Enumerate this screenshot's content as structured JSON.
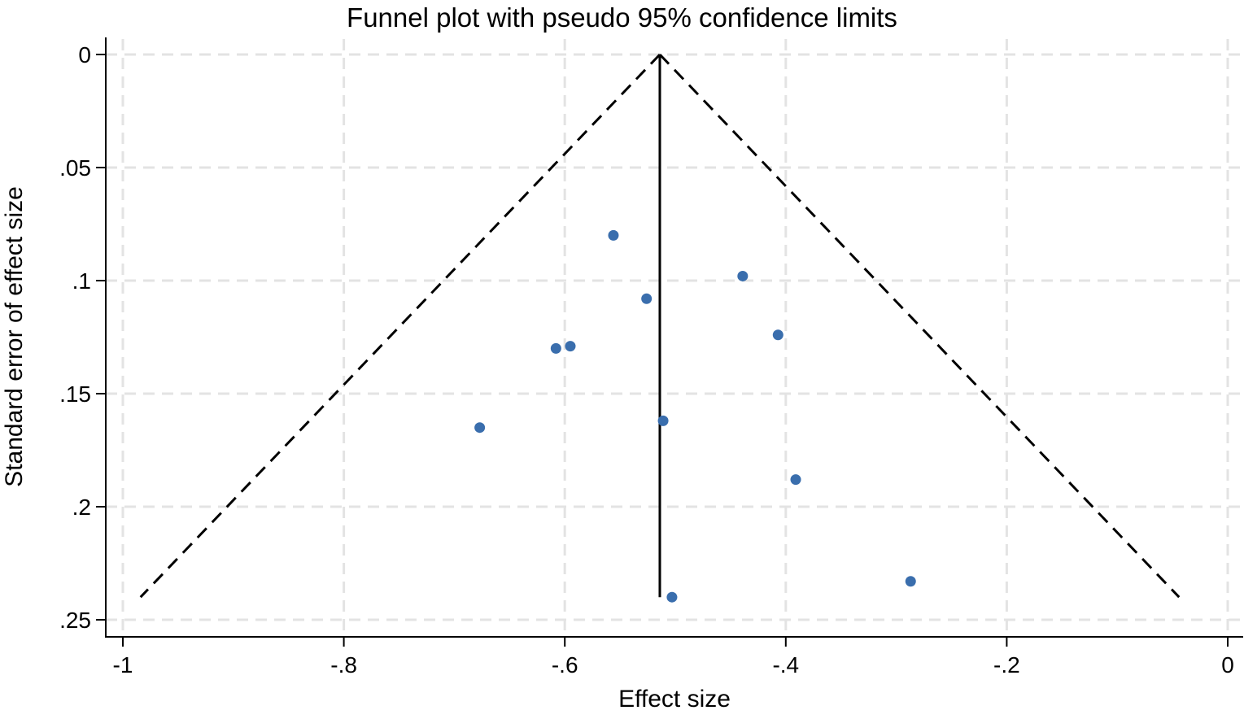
{
  "chart_data": {
    "type": "scatter",
    "title": "Funnel plot with pseudo 95% confidence limits",
    "xlabel": "Effect size",
    "ylabel": "Standard error of effect size",
    "xlim": [
      -1,
      0
    ],
    "ylim": [
      0,
      0.25
    ],
    "y_reversed": true,
    "grid": true,
    "x_ticks": [
      -1,
      -0.8,
      -0.6,
      -0.4,
      -0.2,
      0
    ],
    "x_tick_labels": [
      "-1",
      "-.8",
      "-.6",
      "-.4",
      "-.2",
      "0"
    ],
    "y_ticks": [
      0,
      0.05,
      0.1,
      0.15,
      0.2,
      0.25
    ],
    "y_tick_labels": [
      "0",
      ".05",
      ".1",
      ".15",
      ".2",
      ".25"
    ],
    "points": [
      {
        "x": -0.556,
        "y": 0.08
      },
      {
        "x": -0.526,
        "y": 0.108
      },
      {
        "x": -0.439,
        "y": 0.098
      },
      {
        "x": -0.407,
        "y": 0.124
      },
      {
        "x": -0.608,
        "y": 0.13
      },
      {
        "x": -0.595,
        "y": 0.129
      },
      {
        "x": -0.677,
        "y": 0.165
      },
      {
        "x": -0.511,
        "y": 0.162
      },
      {
        "x": -0.391,
        "y": 0.188
      },
      {
        "x": -0.287,
        "y": 0.233
      },
      {
        "x": -0.503,
        "y": 0.24
      }
    ],
    "pooled_effect": -0.514,
    "se_max": 0.24,
    "ci_lines": [
      {
        "from": [
          -0.514,
          0
        ],
        "to": [
          -0.984,
          0.24
        ]
      },
      {
        "from": [
          -0.514,
          0
        ],
        "to": [
          -0.044,
          0.24
        ]
      }
    ],
    "colors": {
      "points": "#3a6ead",
      "grid": "#e3e3e3",
      "lines": "#000000"
    }
  }
}
